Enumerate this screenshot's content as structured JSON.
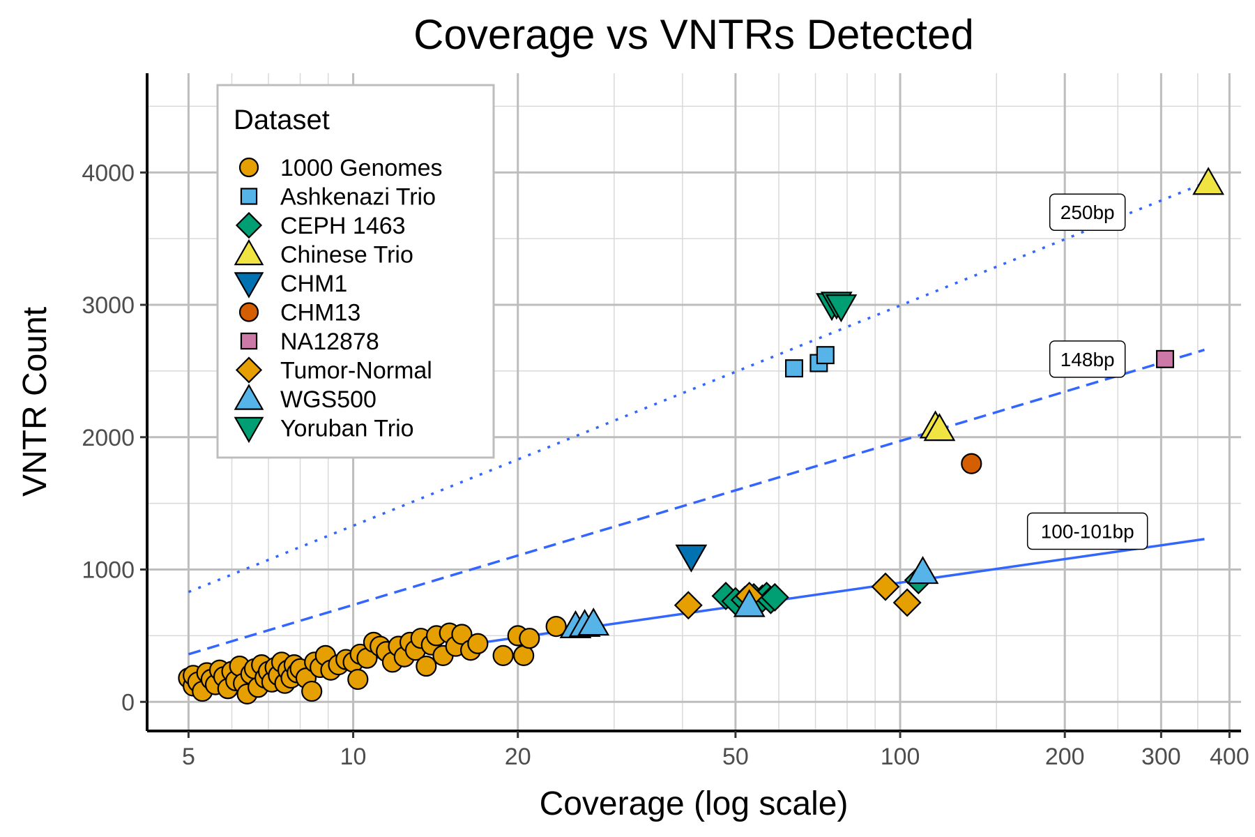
{
  "chart_data": {
    "type": "scatter",
    "title": "Coverage vs VNTRs Detected",
    "xlabel": "Coverage (log scale)",
    "ylabel": "VNTR Count",
    "x_scale": "log",
    "xlim": [
      4.2,
      420
    ],
    "ylim": [
      -220,
      4750
    ],
    "x_ticks": [
      5,
      10,
      20,
      50,
      100,
      200,
      300,
      400
    ],
    "x_tick_labels": [
      "5",
      "10",
      "20",
      "50",
      "100",
      "200",
      "300",
      "400"
    ],
    "y_ticks": [
      0,
      1000,
      2000,
      3000,
      4000
    ],
    "y_tick_labels": [
      "0",
      "1000",
      "2000",
      "3000",
      "4000"
    ],
    "grid": true,
    "legend": {
      "title": "Dataset",
      "position": "top-left",
      "entries": [
        {
          "name": "1000 Genomes",
          "shape": "circle",
          "color": "#E69F00"
        },
        {
          "name": "Ashkenazi Trio",
          "shape": "square",
          "color": "#56B4E9"
        },
        {
          "name": "CEPH 1463",
          "shape": "diamond",
          "color": "#009E73"
        },
        {
          "name": "Chinese Trio",
          "shape": "triangle-up",
          "color": "#F0E442"
        },
        {
          "name": "CHM1",
          "shape": "triangle-down",
          "color": "#0072B2"
        },
        {
          "name": "CHM13",
          "shape": "circle",
          "color": "#D55E00"
        },
        {
          "name": "NA12878",
          "shape": "square",
          "color": "#CC79A7"
        },
        {
          "name": "Tumor-Normal",
          "shape": "diamond",
          "color": "#E69F00"
        },
        {
          "name": "WGS500",
          "shape": "triangle-up",
          "color": "#56B4E9"
        },
        {
          "name": "Yoruban Trio",
          "shape": "triangle-down",
          "color": "#009E73"
        }
      ]
    },
    "reference_lines": [
      {
        "label": "250bp",
        "style": "dotted",
        "color": "#3366FF",
        "x": [
          5,
          360
        ],
        "y": [
          830,
          3920
        ],
        "label_at": [
          220,
          3700
        ]
      },
      {
        "label": "148bp",
        "style": "dashed",
        "color": "#3366FF",
        "x": [
          5,
          360
        ],
        "y": [
          360,
          2660
        ],
        "label_at": [
          220,
          2590
        ]
      },
      {
        "label": "100-101bp",
        "style": "solid",
        "color": "#3366FF",
        "x": [
          5,
          360
        ],
        "y": [
          130,
          1230
        ],
        "label_at": [
          220,
          1290
        ]
      }
    ],
    "series": [
      {
        "name": "1000 Genomes",
        "points": [
          [
            5.0,
            180
          ],
          [
            5.1,
            120
          ],
          [
            5.1,
            200
          ],
          [
            5.2,
            150
          ],
          [
            5.3,
            80
          ],
          [
            5.4,
            220
          ],
          [
            5.5,
            170
          ],
          [
            5.6,
            130
          ],
          [
            5.7,
            240
          ],
          [
            5.8,
            190
          ],
          [
            5.9,
            100
          ],
          [
            6.0,
            230
          ],
          [
            6.1,
            160
          ],
          [
            6.2,
            270
          ],
          [
            6.3,
            140
          ],
          [
            6.4,
            60
          ],
          [
            6.5,
            210
          ],
          [
            6.6,
            250
          ],
          [
            6.7,
            110
          ],
          [
            6.8,
            280
          ],
          [
            6.9,
            180
          ],
          [
            7.0,
            230
          ],
          [
            7.1,
            150
          ],
          [
            7.2,
            260
          ],
          [
            7.3,
            200
          ],
          [
            7.4,
            300
          ],
          [
            7.5,
            140
          ],
          [
            7.6,
            240
          ],
          [
            7.7,
            180
          ],
          [
            7.8,
            280
          ],
          [
            7.9,
            220
          ],
          [
            8.0,
            250
          ],
          [
            8.2,
            180
          ],
          [
            8.4,
            80
          ],
          [
            8.5,
            300
          ],
          [
            8.7,
            260
          ],
          [
            8.9,
            350
          ],
          [
            9.1,
            240
          ],
          [
            9.4,
            280
          ],
          [
            9.7,
            320
          ],
          [
            10.0,
            300
          ],
          [
            10.2,
            170
          ],
          [
            10.3,
            360
          ],
          [
            10.6,
            330
          ],
          [
            10.9,
            450
          ],
          [
            11.2,
            420
          ],
          [
            11.5,
            380
          ],
          [
            11.8,
            300
          ],
          [
            12.1,
            420
          ],
          [
            12.4,
            340
          ],
          [
            12.7,
            450
          ],
          [
            13.0,
            390
          ],
          [
            13.3,
            480
          ],
          [
            13.6,
            270
          ],
          [
            13.9,
            430
          ],
          [
            14.2,
            500
          ],
          [
            14.6,
            350
          ],
          [
            15.0,
            520
          ],
          [
            15.4,
            420
          ],
          [
            15.8,
            510
          ],
          [
            16.4,
            390
          ],
          [
            16.9,
            440
          ],
          [
            18.8,
            350
          ],
          [
            20.0,
            500
          ],
          [
            20.5,
            350
          ],
          [
            21.0,
            480
          ],
          [
            23.5,
            570
          ]
        ]
      },
      {
        "name": "Ashkenazi Trio",
        "points": [
          [
            64,
            2520
          ],
          [
            71,
            2560
          ],
          [
            73,
            2620
          ]
        ]
      },
      {
        "name": "CEPH 1463",
        "points": [
          [
            48,
            800
          ],
          [
            50,
            760
          ],
          [
            52,
            770
          ],
          [
            54,
            790
          ],
          [
            56,
            780
          ],
          [
            57,
            800
          ],
          [
            58,
            770
          ],
          [
            59,
            790
          ],
          [
            108,
            920
          ]
        ]
      },
      {
        "name": "Chinese Trio",
        "points": [
          [
            116,
            2080
          ],
          [
            118,
            2060
          ],
          [
            366,
            3920
          ]
        ]
      },
      {
        "name": "CHM1",
        "points": [
          [
            41.5,
            1100
          ]
        ]
      },
      {
        "name": "CHM13",
        "points": [
          [
            135,
            1800
          ]
        ]
      },
      {
        "name": "NA12878",
        "points": [
          [
            305,
            2590
          ]
        ]
      },
      {
        "name": "Tumor-Normal",
        "points": [
          [
            41,
            730
          ],
          [
            53,
            800
          ],
          [
            94,
            870
          ],
          [
            103,
            750
          ]
        ]
      },
      {
        "name": "WGS500",
        "points": [
          [
            25.5,
            570
          ],
          [
            26.5,
            580
          ],
          [
            27.5,
            590
          ],
          [
            53,
            730
          ],
          [
            110,
            980
          ]
        ]
      },
      {
        "name": "Yoruban Trio",
        "points": [
          [
            75,
            3000
          ],
          [
            76.5,
            3010
          ],
          [
            78,
            2990
          ]
        ]
      }
    ]
  }
}
